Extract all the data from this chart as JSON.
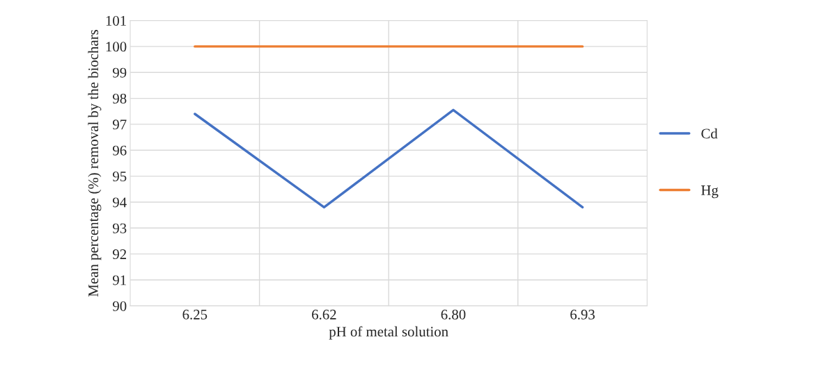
{
  "chart_data": {
    "type": "line",
    "xlabel": "pH of metal solution",
    "ylabel": "Mean percentage (%) removal by the biochars",
    "categories": [
      "6.25",
      "6.62",
      "6.80",
      "6.93"
    ],
    "series": [
      {
        "name": "Cd",
        "color": "#4472c4",
        "values": [
          97.4,
          93.8,
          97.55,
          93.8
        ]
      },
      {
        "name": "Hg",
        "color": "#ed7d31",
        "values": [
          100,
          100,
          100,
          100
        ]
      }
    ],
    "ylim": [
      90,
      101
    ],
    "yticks": [
      90,
      91,
      92,
      93,
      94,
      95,
      96,
      97,
      98,
      99,
      100,
      101
    ],
    "grid": true,
    "legend": "right",
    "marker": "none",
    "line_style": "solid"
  }
}
